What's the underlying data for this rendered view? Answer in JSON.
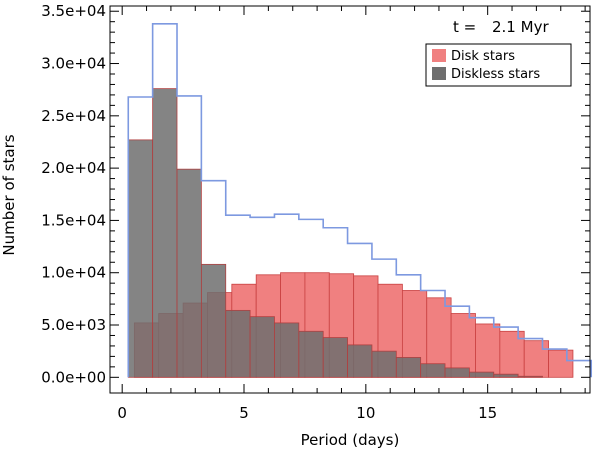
{
  "chart_data": {
    "type": "bar",
    "title": "",
    "xlabel": "Period (days)",
    "ylabel": "Number of stars",
    "xlim": [
      -0.5,
      19.2
    ],
    "ylim": [
      -1500,
      35500
    ],
    "x_ticks": [
      0,
      5,
      10,
      15
    ],
    "x_tick_labels": [
      "0",
      "5",
      "10",
      "15"
    ],
    "y_ticks": [
      0,
      5000,
      10000,
      15000,
      20000,
      25000,
      30000,
      35000
    ],
    "y_tick_labels": [
      "0.0e+00",
      "5.0e+03",
      "1.0e+04",
      "1.5e+04",
      "2.0e+04",
      "2.5e+04",
      "3.0e+04",
      "3.5e+04"
    ],
    "annotation": {
      "label": "t =",
      "value": "2.1 Myr"
    },
    "legend": {
      "placement": "top-right",
      "entries": [
        {
          "label": "Disk stars",
          "color": "#f08080"
        },
        {
          "label": "Diskless stars",
          "color": "#6e6e6e"
        }
      ]
    },
    "bin_edges": [
      0.25,
      1.25,
      2.25,
      3.25,
      4.25,
      5.25,
      6.25,
      7.25,
      8.25,
      9.25,
      10.25,
      11.25,
      12.25,
      13.25,
      14.25,
      15.25,
      16.25,
      17.25,
      18.25,
      19.25
    ],
    "series": [
      {
        "name": "Disk stars",
        "style": "filled",
        "color": "#f08080",
        "edges": [
          0.5,
          1.5,
          2.5,
          3.5,
          4.5,
          5.5,
          6.5,
          7.5,
          8.5,
          9.5,
          10.5,
          11.5,
          12.5,
          13.5,
          14.5,
          15.5,
          16.5,
          17.5,
          18.5
        ],
        "values": [
          5200,
          6100,
          7100,
          8100,
          8900,
          9800,
          10000,
          10000,
          9900,
          9700,
          8900,
          8300,
          7600,
          6100,
          5100,
          4400,
          3500,
          2600
        ]
      },
      {
        "name": "Diskless stars",
        "style": "filled",
        "color": "#6e6e6e",
        "edges": [
          0.25,
          1.25,
          2.25,
          3.25,
          4.25,
          5.25,
          6.25,
          7.25,
          8.25,
          9.25,
          10.25,
          11.25,
          12.25,
          13.25,
          14.25,
          15.25,
          16.25,
          17.25
        ],
        "values": [
          22700,
          27600,
          19900,
          10800,
          6400,
          5800,
          5200,
          4400,
          3800,
          3100,
          2500,
          1900,
          1300,
          900,
          500,
          300,
          100
        ]
      },
      {
        "name": "",
        "style": "outline",
        "color": "#7d99e0",
        "edges": [
          0.25,
          1.25,
          2.25,
          3.25,
          4.25,
          5.25,
          6.25,
          7.25,
          8.25,
          9.25,
          10.25,
          11.25,
          12.25,
          13.25,
          14.25,
          15.25,
          16.25,
          17.25,
          18.25,
          19.25
        ],
        "values": [
          26800,
          33800,
          26900,
          18800,
          15500,
          15300,
          15600,
          15100,
          14300,
          12800,
          11300,
          9800,
          8300,
          6800,
          5700,
          4800,
          3700,
          2700,
          1600
        ]
      }
    ]
  }
}
